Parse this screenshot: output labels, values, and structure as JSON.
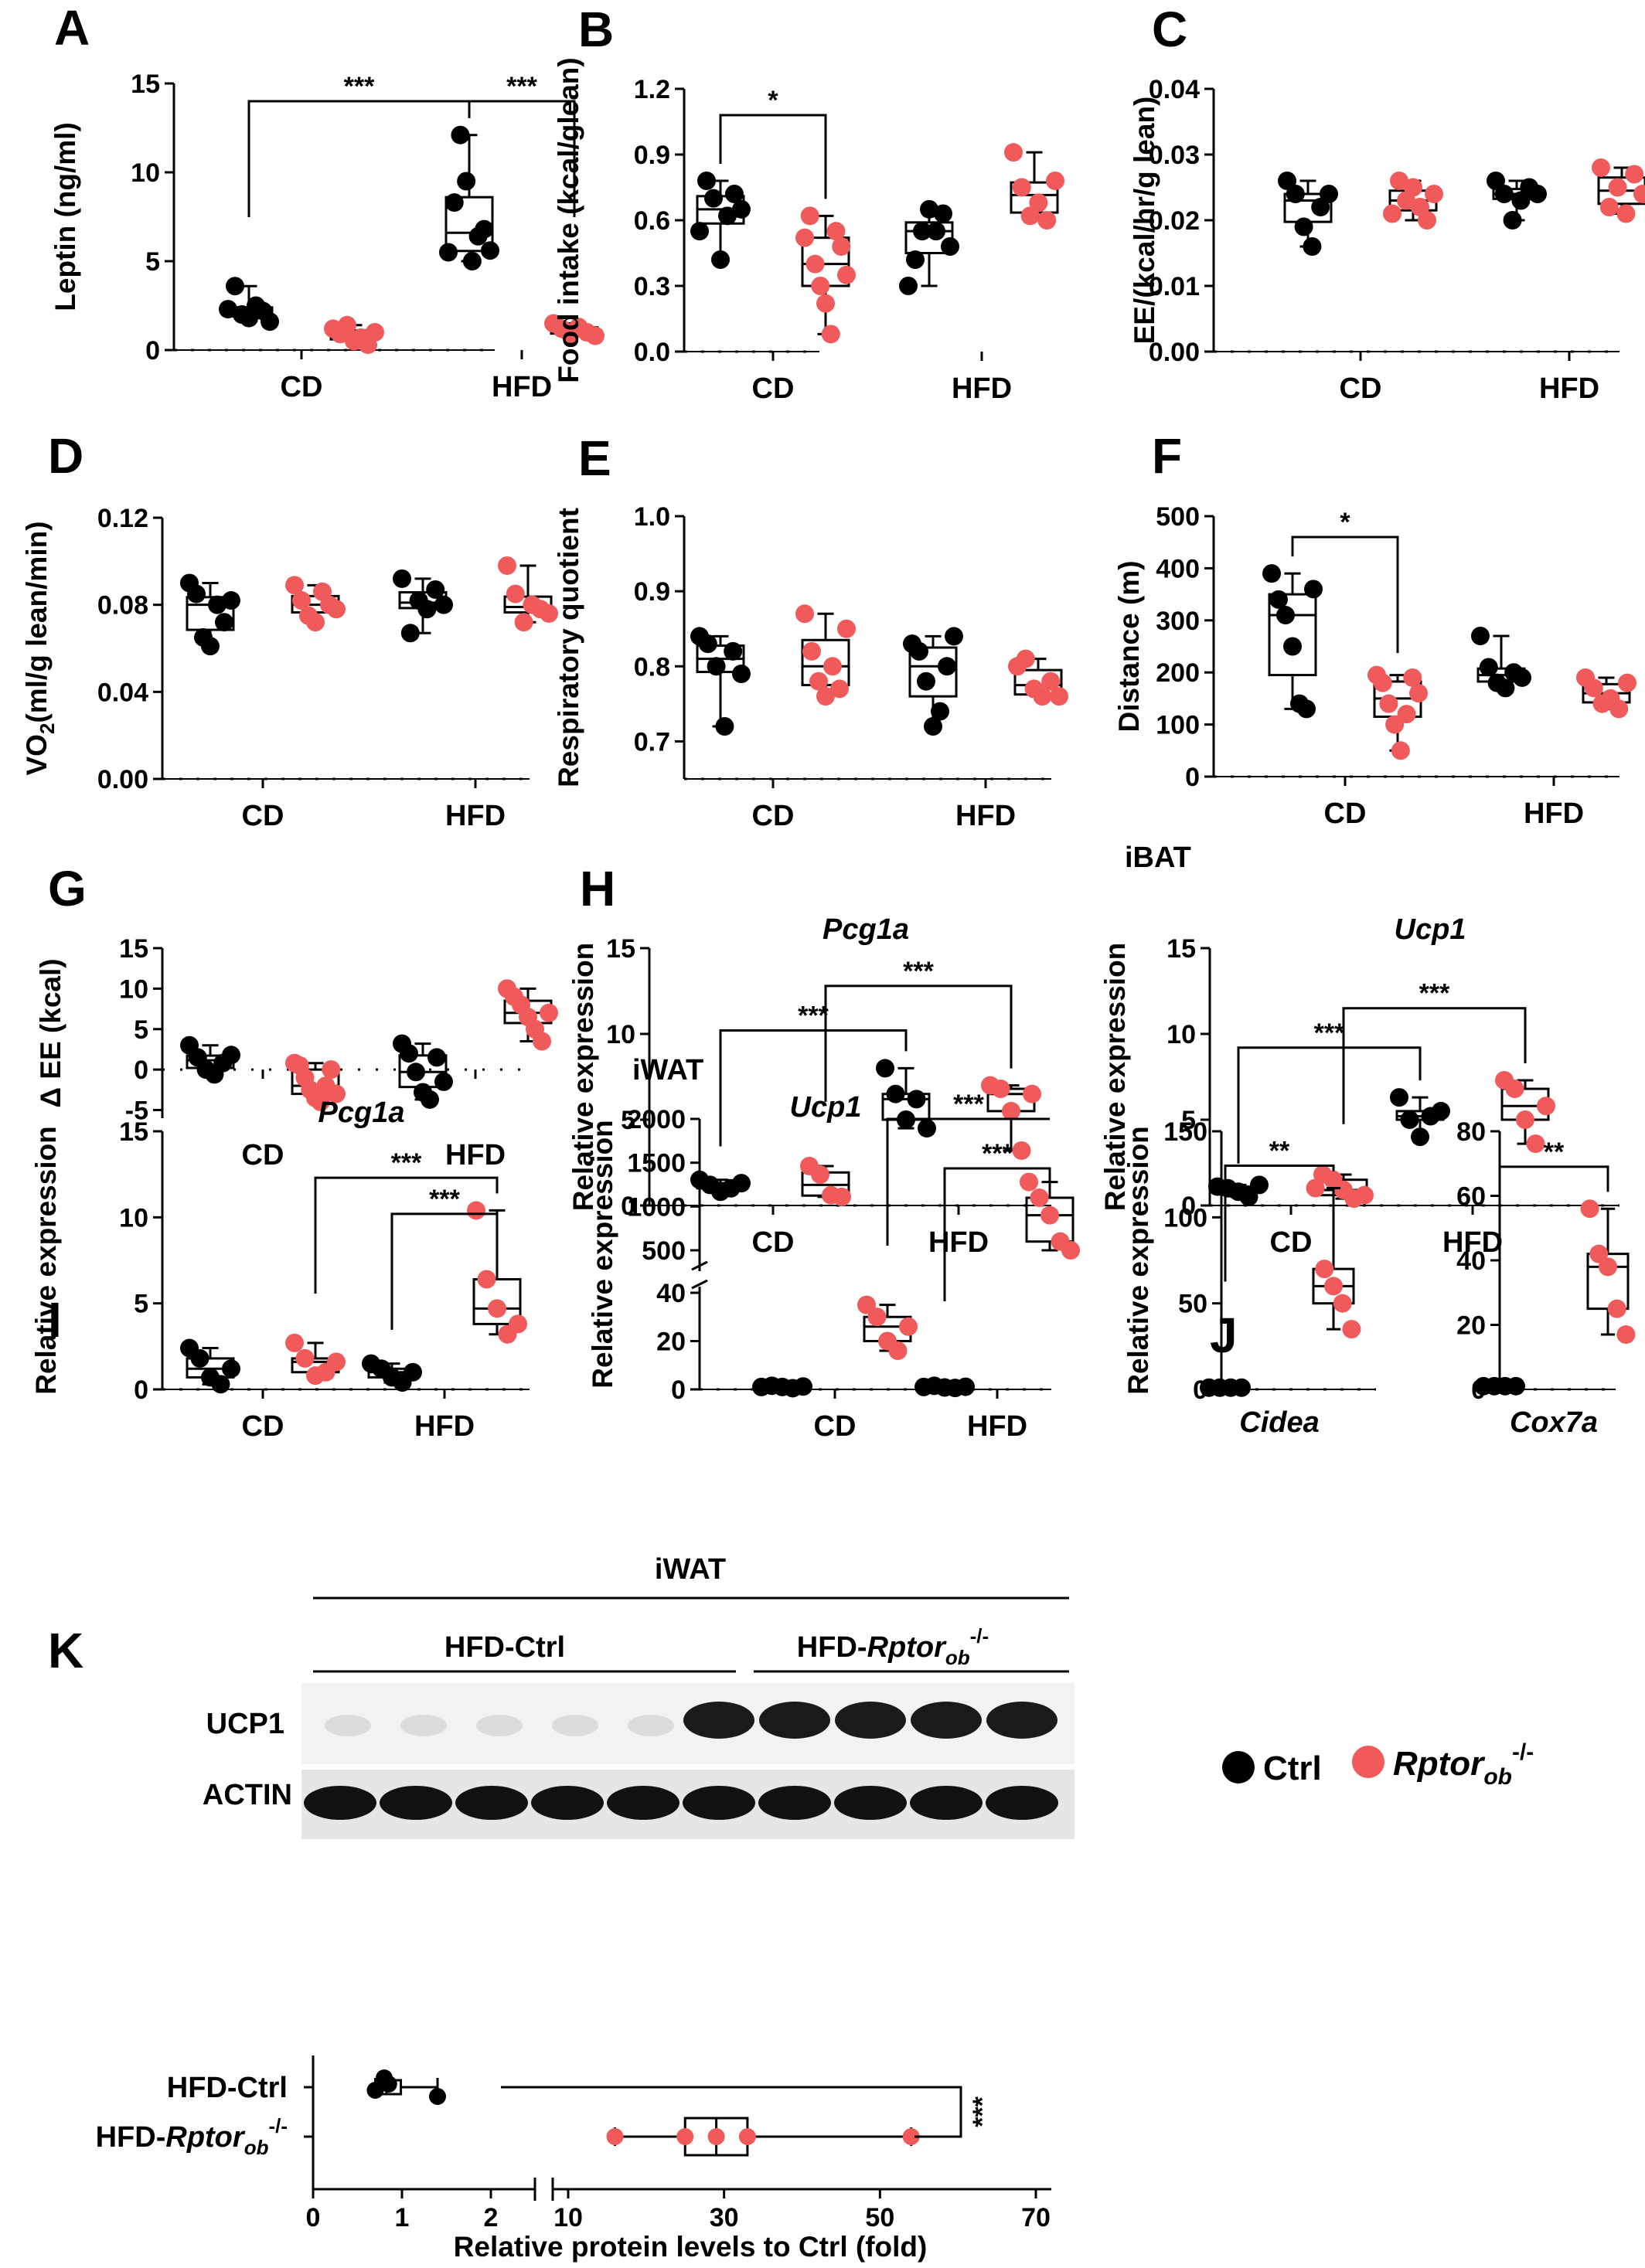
{
  "colors": {
    "ctrl": "#000000",
    "ko": "#f05a5a"
  },
  "legend": {
    "ctrl_label": "Ctrl",
    "ko_label": "Rptor",
    "ko_sub": "ob",
    "ko_sup": "-/-"
  },
  "chart_data": [
    {
      "id": "A",
      "type": "box",
      "panel": "A",
      "title": "",
      "xlabel": "",
      "ylabel": "Leptin (ng/ml)",
      "ylim": [
        0,
        15
      ],
      "yticks": [
        0,
        5,
        10,
        15
      ],
      "categories": [
        "CD",
        "HFD"
      ],
      "series": [
        {
          "name": "Ctrl",
          "values": [
            [
              2.3,
              3.6,
              2.0,
              1.8,
              2.5,
              2.2,
              1.6
            ],
            [
              5.5,
              8.3,
              12.1,
              9.5,
              5.0,
              6.4,
              6.8,
              5.6
            ]
          ]
        },
        {
          "name": "Rptorob-/-",
          "values": [
            [
              1.2,
              0.9,
              1.4,
              0.5,
              0.7,
              0.3,
              1.0
            ],
            [
              1.5,
              1.2,
              0.9,
              1.3,
              1.0,
              0.8
            ]
          ]
        }
      ],
      "significance": [
        {
          "label": "***",
          "from": [
            0,
            0
          ],
          "to": [
            1,
            0
          ],
          "y": 14
        },
        {
          "label": "***",
          "from": [
            1,
            0
          ],
          "to": [
            1,
            1
          ],
          "y": 14
        }
      ]
    },
    {
      "id": "B",
      "type": "box",
      "panel": "B",
      "title": "",
      "xlabel": "",
      "ylabel": "Food intake (kcal/glean)",
      "ylim": [
        0,
        1.2
      ],
      "yticks": [
        "0.0",
        "0.3",
        "0.6",
        "0.9",
        "1.2"
      ],
      "categories": [
        "CD",
        "HFD"
      ],
      "series": [
        {
          "name": "Ctrl",
          "values": [
            [
              0.55,
              0.78,
              0.7,
              0.42,
              0.62,
              0.72,
              0.65
            ],
            [
              0.3,
              0.42,
              0.55,
              0.65,
              0.55,
              0.63,
              0.48
            ]
          ]
        },
        {
          "name": "Rptorob-/-",
          "values": [
            [
              0.52,
              0.62,
              0.4,
              0.3,
              0.22,
              0.08,
              0.55,
              0.48,
              0.35
            ],
            [
              0.91,
              0.75,
              0.62,
              0.68,
              0.6,
              0.78
            ]
          ]
        }
      ],
      "significance": [
        {
          "label": "*",
          "from": [
            0,
            0
          ],
          "to": [
            0,
            1
          ],
          "y": 1.08
        }
      ]
    },
    {
      "id": "C",
      "type": "box",
      "panel": "C",
      "title": "",
      "xlabel": "",
      "ylabel": "EE/(kcal/hr/g lean)",
      "ylim": [
        0,
        0.04
      ],
      "yticks": [
        "0.00",
        "0.01",
        "0.02",
        "0.03",
        "0.04"
      ],
      "categories": [
        "CD",
        "HFD"
      ],
      "series": [
        {
          "name": "Ctrl",
          "values": [
            [
              0.026,
              0.024,
              0.019,
              0.016,
              0.022,
              0.024
            ],
            [
              0.026,
              0.024,
              0.02,
              0.023,
              0.025,
              0.024
            ]
          ]
        },
        {
          "name": "Rptorob-/-",
          "values": [
            [
              0.021,
              0.026,
              0.023,
              0.025,
              0.022,
              0.02,
              0.024
            ],
            [
              0.028,
              0.022,
              0.025,
              0.021,
              0.027,
              0.024
            ]
          ]
        }
      ],
      "significance": []
    },
    {
      "id": "D",
      "type": "box",
      "panel": "D",
      "title": "",
      "xlabel": "",
      "ylabel": "VO2(ml/g lean/min)",
      "ylim": [
        0,
        0.12
      ],
      "yticks": [
        "0.00",
        "0.04",
        "0.08",
        "0.12"
      ],
      "categories": [
        "CD",
        "HFD"
      ],
      "series": [
        {
          "name": "Ctrl",
          "values": [
            [
              0.09,
              0.085,
              0.065,
              0.061,
              0.08,
              0.072,
              0.082
            ],
            [
              0.092,
              0.067,
              0.082,
              0.078,
              0.087,
              0.08
            ]
          ]
        },
        {
          "name": "Rptorob-/-",
          "values": [
            [
              0.089,
              0.082,
              0.075,
              0.072,
              0.086,
              0.08,
              0.078
            ],
            [
              0.098,
              0.085,
              0.072,
              0.08,
              0.078,
              0.076
            ]
          ]
        }
      ],
      "significance": []
    },
    {
      "id": "E",
      "type": "box",
      "panel": "E",
      "title": "",
      "xlabel": "",
      "ylabel": "Respiratory quotient",
      "ylim": [
        0.65,
        1.0
      ],
      "yticks": [
        "0.7",
        "0.8",
        "0.9",
        "1.0"
      ],
      "categories": [
        "CD",
        "HFD"
      ],
      "series": [
        {
          "name": "Ctrl",
          "values": [
            [
              0.84,
              0.83,
              0.8,
              0.72,
              0.82,
              0.79
            ],
            [
              0.83,
              0.82,
              0.78,
              0.72,
              0.74,
              0.8,
              0.84
            ]
          ]
        },
        {
          "name": "Rptorob-/-",
          "values": [
            [
              0.87,
              0.82,
              0.78,
              0.76,
              0.8,
              0.77,
              0.85
            ],
            [
              0.8,
              0.81,
              0.77,
              0.76,
              0.78,
              0.76
            ]
          ]
        }
      ],
      "significance": []
    },
    {
      "id": "F",
      "type": "box",
      "panel": "F",
      "title": "",
      "xlabel": "",
      "ylabel": "Distance (m)",
      "ylim": [
        0,
        500
      ],
      "yticks": [
        0,
        100,
        200,
        300,
        400,
        500
      ],
      "categories": [
        "CD",
        "HFD"
      ],
      "series": [
        {
          "name": "Ctrl",
          "values": [
            [
              390,
              340,
              310,
              250,
              140,
              130,
              360
            ],
            [
              270,
              210,
              180,
              170,
              200,
              190
            ]
          ]
        },
        {
          "name": "Rptorob-/-",
          "values": [
            [
              195,
              180,
              140,
              100,
              50,
              120,
              190,
              160
            ],
            [
              190,
              170,
              140,
              150,
              130,
              180
            ]
          ]
        }
      ],
      "significance": [
        {
          "label": "*",
          "from": [
            0,
            0
          ],
          "to": [
            0,
            1
          ],
          "y": 460
        }
      ]
    },
    {
      "id": "G",
      "type": "box",
      "panel": "G",
      "title": "",
      "xlabel": "",
      "ylabel": "Δ EE (kcal)",
      "ylim": [
        -6,
        15
      ],
      "yticks": [
        -5,
        0,
        5,
        10,
        15
      ],
      "categories": [
        "CD",
        "HFD"
      ],
      "series": [
        {
          "name": "Ctrl",
          "values": [
            [
              3,
              1.5,
              0,
              -0.6,
              0.8,
              1.8
            ],
            [
              3.2,
              2,
              -0.3,
              -2.8,
              -3.7,
              1.5,
              -1.5
            ]
          ]
        },
        {
          "name": "Rptorob-/-",
          "values": [
            [
              0.8,
              0.5,
              -1,
              -2.5,
              -3.5,
              -4,
              -2,
              0,
              -3
            ],
            [
              10,
              9,
              8,
              6.5,
              5,
              3.5,
              7
            ]
          ]
        }
      ],
      "significance": []
    },
    {
      "id": "H1",
      "type": "box",
      "panel": "H",
      "tissue": "",
      "gene": "Pcg1a",
      "xlabel": "",
      "ylabel": "Relative expression",
      "ylim": [
        0,
        15
      ],
      "yticks": [
        0,
        5,
        10,
        15
      ],
      "categories": [
        "CD",
        "HFD"
      ],
      "series": [
        {
          "name": "Ctrl",
          "values": [
            [
              1.5,
              1.2,
              0.8,
              1.0,
              1.3
            ],
            [
              8.0,
              6.5,
              5.0,
              6.2,
              4.5
            ]
          ]
        },
        {
          "name": "Rptorob-/-",
          "values": [
            [
              2.3,
              1.8,
              0.6,
              0.5
            ],
            [
              7.0,
              6.8,
              5.5,
              3.2,
              6.5
            ]
          ]
        }
      ],
      "significance": [
        {
          "label": "***",
          "from": [
            0,
            0
          ],
          "to": [
            1,
            0
          ],
          "y": 10.2
        },
        {
          "label": "***",
          "from": [
            0,
            1
          ],
          "to": [
            1,
            1
          ],
          "y": 12.8
        }
      ]
    },
    {
      "id": "H2",
      "type": "box",
      "panel": "",
      "tissue": "iBAT",
      "gene": "Ucp1",
      "xlabel": "",
      "ylabel": "Relative expression",
      "ylim": [
        0,
        15
      ],
      "yticks": [
        0,
        5,
        10,
        15
      ],
      "categories": [
        "CD",
        "HFD"
      ],
      "series": [
        {
          "name": "Ctrl",
          "values": [
            [
              1.1,
              1.0,
              0.8,
              0.5,
              1.2
            ],
            [
              6.3,
              5.0,
              4.0,
              5.2,
              5.5
            ]
          ]
        },
        {
          "name": "Rptorob-/-",
          "values": [
            [
              1.8,
              1.5,
              0.9,
              0.4,
              0.6
            ],
            [
              7.3,
              6.8,
              5.0,
              3.6,
              5.8
            ]
          ]
        }
      ],
      "significance": [
        {
          "label": "***",
          "from": [
            0,
            0
          ],
          "to": [
            1,
            0
          ],
          "y": 9.2
        },
        {
          "label": "***",
          "from": [
            0,
            1
          ],
          "to": [
            1,
            1
          ],
          "y": 11.5
        }
      ]
    },
    {
      "id": "I1",
      "type": "box",
      "panel": "I",
      "tissue": "",
      "gene": "Pcg1a",
      "xlabel": "",
      "ylabel": "Relative expression",
      "ylim": [
        0,
        15
      ],
      "yticks": [
        0,
        5,
        10,
        15
      ],
      "categories": [
        "CD",
        "HFD"
      ],
      "series": [
        {
          "name": "Ctrl",
          "values": [
            [
              2.4,
              1.8,
              0.7,
              0.3,
              1.2
            ],
            [
              1.5,
              1.2,
              0.7,
              0.4,
              1.0
            ]
          ]
        },
        {
          "name": "Rptorob-/-",
          "values": [
            [
              2.7,
              1.8,
              0.8,
              1.0,
              1.6
            ],
            [
              10.4,
              6.4,
              4.7,
              3.2,
              3.8
            ]
          ]
        }
      ],
      "significance": [
        {
          "label": "***",
          "from": [
            0,
            1
          ],
          "to": [
            1,
            1
          ],
          "y": 12.3
        },
        {
          "label": "***",
          "from": [
            1,
            0
          ],
          "to": [
            1,
            1
          ],
          "y": 10.2
        }
      ]
    },
    {
      "id": "I2",
      "type": "box_broken",
      "panel": "",
      "tissue": "iWAT",
      "gene": "Ucp1",
      "xlabel": "",
      "ylabel": "Relative expression",
      "yticks_low": [
        0,
        20,
        40
      ],
      "yticks_high": [
        500,
        1000,
        1500,
        2000
      ],
      "categories": [
        "CD",
        "HFD"
      ],
      "series": [
        {
          "name": "Ctrl",
          "values": [
            [
              1,
              1.5,
              1,
              0.5,
              1.2
            ],
            [
              1,
              1.5,
              0.8,
              0.6,
              1.1
            ]
          ]
        },
        {
          "name": "Rptorob-/-",
          "values": [
            [
              35,
              30,
              20,
              16,
              26
            ],
            [
              1280,
              1100,
              900,
              600,
              500
            ]
          ]
        }
      ],
      "significance": [
        {
          "label": "***",
          "from": [
            0,
            1
          ],
          "to": [
            1,
            1
          ],
          "y": "top"
        },
        {
          "label": "***",
          "from": [
            1,
            0
          ],
          "to": [
            1,
            1
          ],
          "y": "upper"
        }
      ]
    },
    {
      "id": "J1",
      "type": "box",
      "panel": "J",
      "xlabel": "",
      "ylabel": "Relative expression",
      "ylim": [
        0,
        150
      ],
      "yticks": [
        0,
        50,
        100,
        150
      ],
      "categories": [
        "Cidea"
      ],
      "series": [
        {
          "name": "Ctrl",
          "values": [
            [
              1,
              1,
              1,
              1
            ]
          ]
        },
        {
          "name": "Rptorob-/-",
          "values": [
            [
              117,
              70,
              60,
              50,
              35
            ]
          ]
        }
      ],
      "significance": [
        {
          "label": "**",
          "from": [
            0,
            0
          ],
          "to": [
            0,
            1
          ],
          "y": 130
        }
      ]
    },
    {
      "id": "J2",
      "type": "box",
      "panel": "",
      "xlabel": "",
      "ylabel": "",
      "ylim": [
        0,
        80
      ],
      "yticks": [
        0,
        20,
        40,
        60,
        80
      ],
      "categories": [
        "Cox7a"
      ],
      "series": [
        {
          "name": "Ctrl",
          "values": [
            [
              1,
              1,
              1,
              1
            ]
          ]
        },
        {
          "name": "Rptorob-/-",
          "values": [
            [
              56,
              42,
              38,
              25,
              17
            ]
          ]
        }
      ],
      "significance": [
        {
          "label": "**",
          "from": [
            0,
            0
          ],
          "to": [
            0,
            1
          ],
          "y": 69
        }
      ]
    },
    {
      "id": "K_quant",
      "type": "box_horizontal",
      "panel": "",
      "xlabel": "Relative protein levels to Ctrl (fold)",
      "xticks_low": [
        0,
        1,
        2
      ],
      "xticks_high": [
        10,
        30,
        50,
        70
      ],
      "categories": [
        "HFD-Ctrl",
        "HFD-Rptorob-/-"
      ],
      "series": [
        {
          "name": "Ctrl",
          "values": [
            [
              0.8,
              0.85,
              0.7,
              1.4
            ]
          ]
        },
        {
          "name": "Rptorob-/-",
          "values": [
            [
              16,
              25,
              29,
              33,
              54
            ]
          ]
        }
      ],
      "significance": [
        {
          "label": "***",
          "from": 0,
          "to": 1
        }
      ]
    }
  ],
  "westernBlot": {
    "panel": "K",
    "tissue": "iWAT",
    "group1": "HFD-Ctrl",
    "group2_prefix": "HFD-",
    "group2_name": "Rptor",
    "group2_sub": "ob",
    "group2_sup": "-/-",
    "rows": [
      "UCP1",
      "ACTIN"
    ],
    "lanes": 10
  }
}
